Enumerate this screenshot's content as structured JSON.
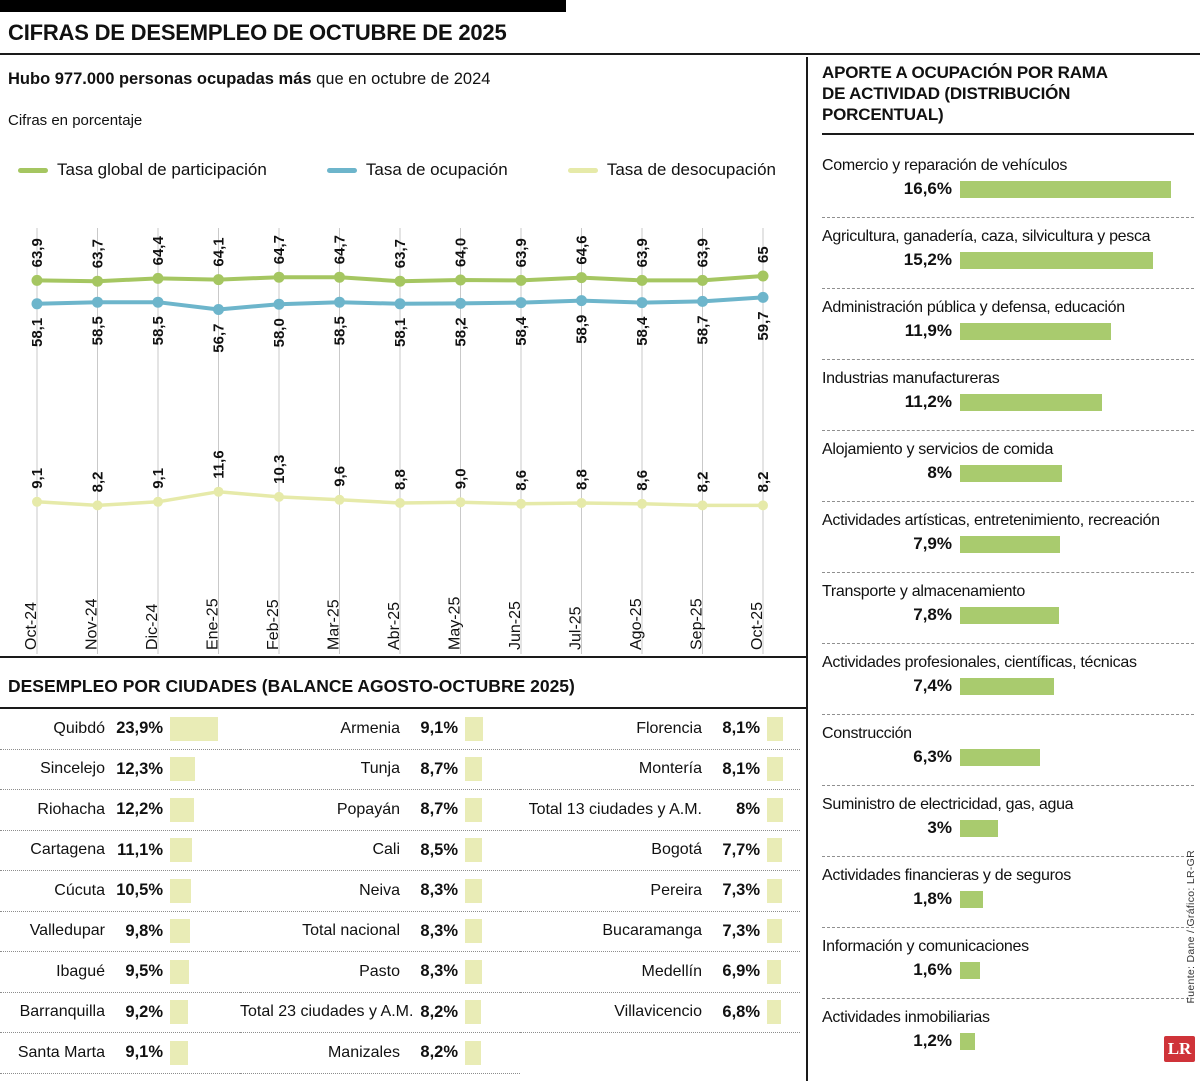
{
  "meta": {
    "title": "CIFRAS DE DESEMPLEO DE OCTUBRE DE 2025",
    "subtitle_bold": "Hubo 977.000 personas ocupadas más",
    "subtitle_rest": " que en octubre de 2024",
    "units_note": "Cifras en porcentaje",
    "source": "Fuente: Dane / Gráfico: LR-GR",
    "logo_text": "LR"
  },
  "colors": {
    "participation": "#a5c661",
    "occupation": "#6db5cb",
    "unemployment": "#e6eaa9",
    "bar_green": "#a9cb6e",
    "bar_pale": "#e9ecb6",
    "grid": "#c9c9c9",
    "logo_red": "#cf3339"
  },
  "chart_data": {
    "type": "line",
    "x": [
      "Oct-24",
      "Nov-24",
      "Dic-24",
      "Ene-25",
      "Feb-25",
      "Mar-25",
      "Abr-25",
      "May-25",
      "Jun-25",
      "Jul-25",
      "Ago-25",
      "Sep-25",
      "Oct-25"
    ],
    "ylim": [
      8,
      66
    ],
    "grid": "vertical",
    "legend_position": "top",
    "series": [
      {
        "name": "Tasa global de participación",
        "color_key": "participation",
        "values": [
          63.9,
          63.7,
          64.4,
          64.1,
          64.7,
          64.7,
          63.7,
          64.0,
          63.9,
          64.6,
          63.9,
          63.9,
          65
        ],
        "labels": [
          "63,9",
          "63,7",
          "64,4",
          "64,1",
          "64,7",
          "64,7",
          "63,7",
          "64,0",
          "63,9",
          "64,6",
          "63,9",
          "63,9",
          "65"
        ],
        "label_side": "above"
      },
      {
        "name": "Tasa de ocupación",
        "color_key": "occupation",
        "values": [
          58.1,
          58.5,
          58.5,
          56.7,
          58.0,
          58.5,
          58.1,
          58.2,
          58.4,
          58.9,
          58.4,
          58.7,
          59.7
        ],
        "labels": [
          "58,1",
          "58,5",
          "58,5",
          "56,7",
          "58,0",
          "58,5",
          "58,1",
          "58,2",
          "58,4",
          "58,9",
          "58,4",
          "58,7",
          "59,7"
        ],
        "label_side": "below"
      },
      {
        "name": "Tasa de desocupación",
        "color_key": "unemployment",
        "values": [
          9.1,
          8.2,
          9.1,
          11.6,
          10.3,
          9.6,
          8.8,
          9.0,
          8.6,
          8.8,
          8.6,
          8.2,
          8.2
        ],
        "labels": [
          "9,1",
          "8,2",
          "9,1",
          "11,6",
          "10,3",
          "9,6",
          "8,8",
          "9,0",
          "8,6",
          "8,8",
          "8,6",
          "8,2",
          "8,2"
        ],
        "label_side": "above"
      }
    ]
  },
  "sector_panel": {
    "title_line1": "APORTE A OCUPACIÓN POR RAMA",
    "title_line2": "DE ACTIVIDAD (DISTRIBUCIÓN PORCENTUAL)",
    "max_value": 16.6,
    "items": [
      {
        "label": "Comercio y reparación de vehículos",
        "value": 16.6,
        "value_label": "16,6%"
      },
      {
        "label": "Agricultura, ganadería, caza, silvicultura y pesca",
        "value": 15.2,
        "value_label": "15,2%"
      },
      {
        "label": "Administración pública y defensa, educación",
        "value": 11.9,
        "value_label": "11,9%"
      },
      {
        "label": "Industrias manufactureras",
        "value": 11.2,
        "value_label": "11,2%"
      },
      {
        "label": "Alojamiento y servicios de comida",
        "value": 8,
        "value_label": "8%"
      },
      {
        "label": "Actividades artísticas, entretenimiento, recreación",
        "value": 7.9,
        "value_label": "7,9%"
      },
      {
        "label": "Transporte y almacenamiento",
        "value": 7.8,
        "value_label": "7,8%"
      },
      {
        "label": "Actividades profesionales, científicas, técnicas",
        "value": 7.4,
        "value_label": "7,4%"
      },
      {
        "label": "Construcción",
        "value": 6.3,
        "value_label": "6,3%"
      },
      {
        "label": "Suministro de electricidad, gas, agua",
        "value": 3,
        "value_label": "3%"
      },
      {
        "label": "Actividades financieras y de seguros",
        "value": 1.8,
        "value_label": "1,8%"
      },
      {
        "label": "Información y comunicaciones",
        "value": 1.6,
        "value_label": "1,6%"
      },
      {
        "label": "Actividades inmobiliarias",
        "value": 1.2,
        "value_label": "1,2%"
      }
    ]
  },
  "cities_panel": {
    "title": "DESEMPLEO POR CIUDADES (BALANCE AGOSTO-OCTUBRE 2025)",
    "max_value": 23.9,
    "columns": [
      [
        {
          "label": "Quibdó",
          "value": 23.9,
          "value_label": "23,9%"
        },
        {
          "label": "Sincelejo",
          "value": 12.3,
          "value_label": "12,3%"
        },
        {
          "label": "Riohacha",
          "value": 12.2,
          "value_label": "12,2%"
        },
        {
          "label": "Cartagena",
          "value": 11.1,
          "value_label": "11,1%"
        },
        {
          "label": "Cúcuta",
          "value": 10.5,
          "value_label": "10,5%"
        },
        {
          "label": "Valledupar",
          "value": 9.8,
          "value_label": "9,8%"
        },
        {
          "label": "Ibagué",
          "value": 9.5,
          "value_label": "9,5%"
        },
        {
          "label": "Barranquilla",
          "value": 9.2,
          "value_label": "9,2%"
        },
        {
          "label": "Santa Marta",
          "value": 9.1,
          "value_label": "9,1%"
        }
      ],
      [
        {
          "label": "Armenia",
          "value": 9.1,
          "value_label": "9,1%"
        },
        {
          "label": "Tunja",
          "value": 8.7,
          "value_label": "8,7%"
        },
        {
          "label": "Popayán",
          "value": 8.7,
          "value_label": "8,7%"
        },
        {
          "label": "Cali",
          "value": 8.5,
          "value_label": "8,5%"
        },
        {
          "label": "Neiva",
          "value": 8.3,
          "value_label": "8,3%"
        },
        {
          "label": "Total nacional",
          "value": 8.3,
          "value_label": "8,3%"
        },
        {
          "label": "Pasto",
          "value": 8.3,
          "value_label": "8,3%"
        },
        {
          "label": "Total 23 ciudades y A.M.",
          "value": 8.2,
          "value_label": "8,2%"
        },
        {
          "label": "Manizales",
          "value": 8.2,
          "value_label": "8,2%"
        }
      ],
      [
        {
          "label": "Florencia",
          "value": 8.1,
          "value_label": "8,1%"
        },
        {
          "label": "Montería",
          "value": 8.1,
          "value_label": "8,1%"
        },
        {
          "label": "Total 13 ciudades y A.M.",
          "value": 8,
          "value_label": "8%"
        },
        {
          "label": "Bogotá",
          "value": 7.7,
          "value_label": "7,7%"
        },
        {
          "label": "Pereira",
          "value": 7.3,
          "value_label": "7,3%"
        },
        {
          "label": "Bucaramanga",
          "value": 7.3,
          "value_label": "7,3%"
        },
        {
          "label": "Medellín",
          "value": 6.9,
          "value_label": "6,9%"
        },
        {
          "label": "Villavicencio",
          "value": 6.8,
          "value_label": "6,8%"
        }
      ]
    ]
  }
}
